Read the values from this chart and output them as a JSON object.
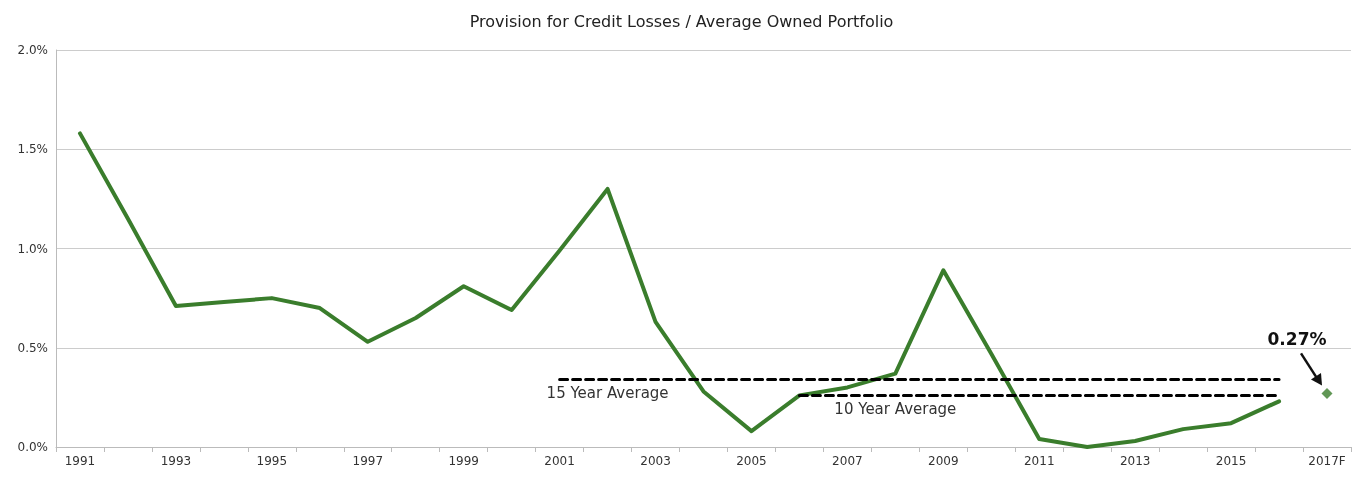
{
  "chart_data": {
    "type": "line",
    "title": "Provision for Credit Losses / Average Owned Portfolio",
    "categories": [
      "1991",
      null,
      "1993",
      null,
      "1995",
      null,
      "1997",
      null,
      "1999",
      null,
      "2001",
      null,
      "2003",
      null,
      "2005",
      null,
      "2007",
      null,
      "2009",
      null,
      "2011",
      null,
      "2013",
      null,
      "2015",
      null,
      "2017F"
    ],
    "series": [
      {
        "color": "#3a7d2c",
        "values": [
          1.58,
          1.15,
          0.71,
          0.73,
          0.75,
          0.7,
          0.53,
          0.65,
          0.81,
          0.69,
          0.99,
          1.3,
          0.63,
          0.28,
          0.08,
          0.26,
          0.3,
          0.37,
          0.89,
          0.47,
          0.04,
          0.0,
          0.03,
          0.09,
          0.12,
          0.23,
          null
        ]
      },
      {
        "type": "scatter",
        "marker": "diamond",
        "color": "#3a7d2c",
        "values": [
          null,
          null,
          null,
          null,
          null,
          null,
          null,
          null,
          null,
          null,
          null,
          null,
          null,
          null,
          null,
          null,
          null,
          null,
          null,
          null,
          null,
          null,
          null,
          null,
          null,
          null,
          0.27
        ]
      },
      {
        "name": "15 Year Average",
        "color": "#000000",
        "line_style": "dashed",
        "values": [
          null,
          null,
          null,
          null,
          null,
          null,
          null,
          null,
          null,
          null,
          0.34,
          0.34,
          0.34,
          0.34,
          0.34,
          0.34,
          0.34,
          0.34,
          0.34,
          0.34,
          0.34,
          0.34,
          0.34,
          0.34,
          0.34,
          0.34,
          null
        ]
      },
      {
        "name": "10 Year Average",
        "color": "#000000",
        "line_style": "dashed",
        "values": [
          null,
          null,
          null,
          null,
          null,
          null,
          null,
          null,
          null,
          null,
          null,
          null,
          null,
          null,
          null,
          0.26,
          0.26,
          0.26,
          0.26,
          0.26,
          0.26,
          0.26,
          0.26,
          0.26,
          0.26,
          0.26,
          null
        ]
      }
    ],
    "annotations": [
      {
        "text": "0.27%",
        "x": "2017F",
        "y": 0.27
      }
    ],
    "ylim": [
      0,
      2
    ],
    "yticks": [
      {
        "value": 0,
        "label": "0.0%"
      },
      {
        "value": 0.5,
        "label": "0.5%"
      },
      {
        "value": 1,
        "label": "1.0%"
      },
      {
        "value": 1.5,
        "label": "1.5%"
      },
      {
        "value": 2,
        "label": "2.0%"
      }
    ],
    "grid": "y",
    "marker": "none",
    "line_style": "solid",
    "legend": false
  }
}
